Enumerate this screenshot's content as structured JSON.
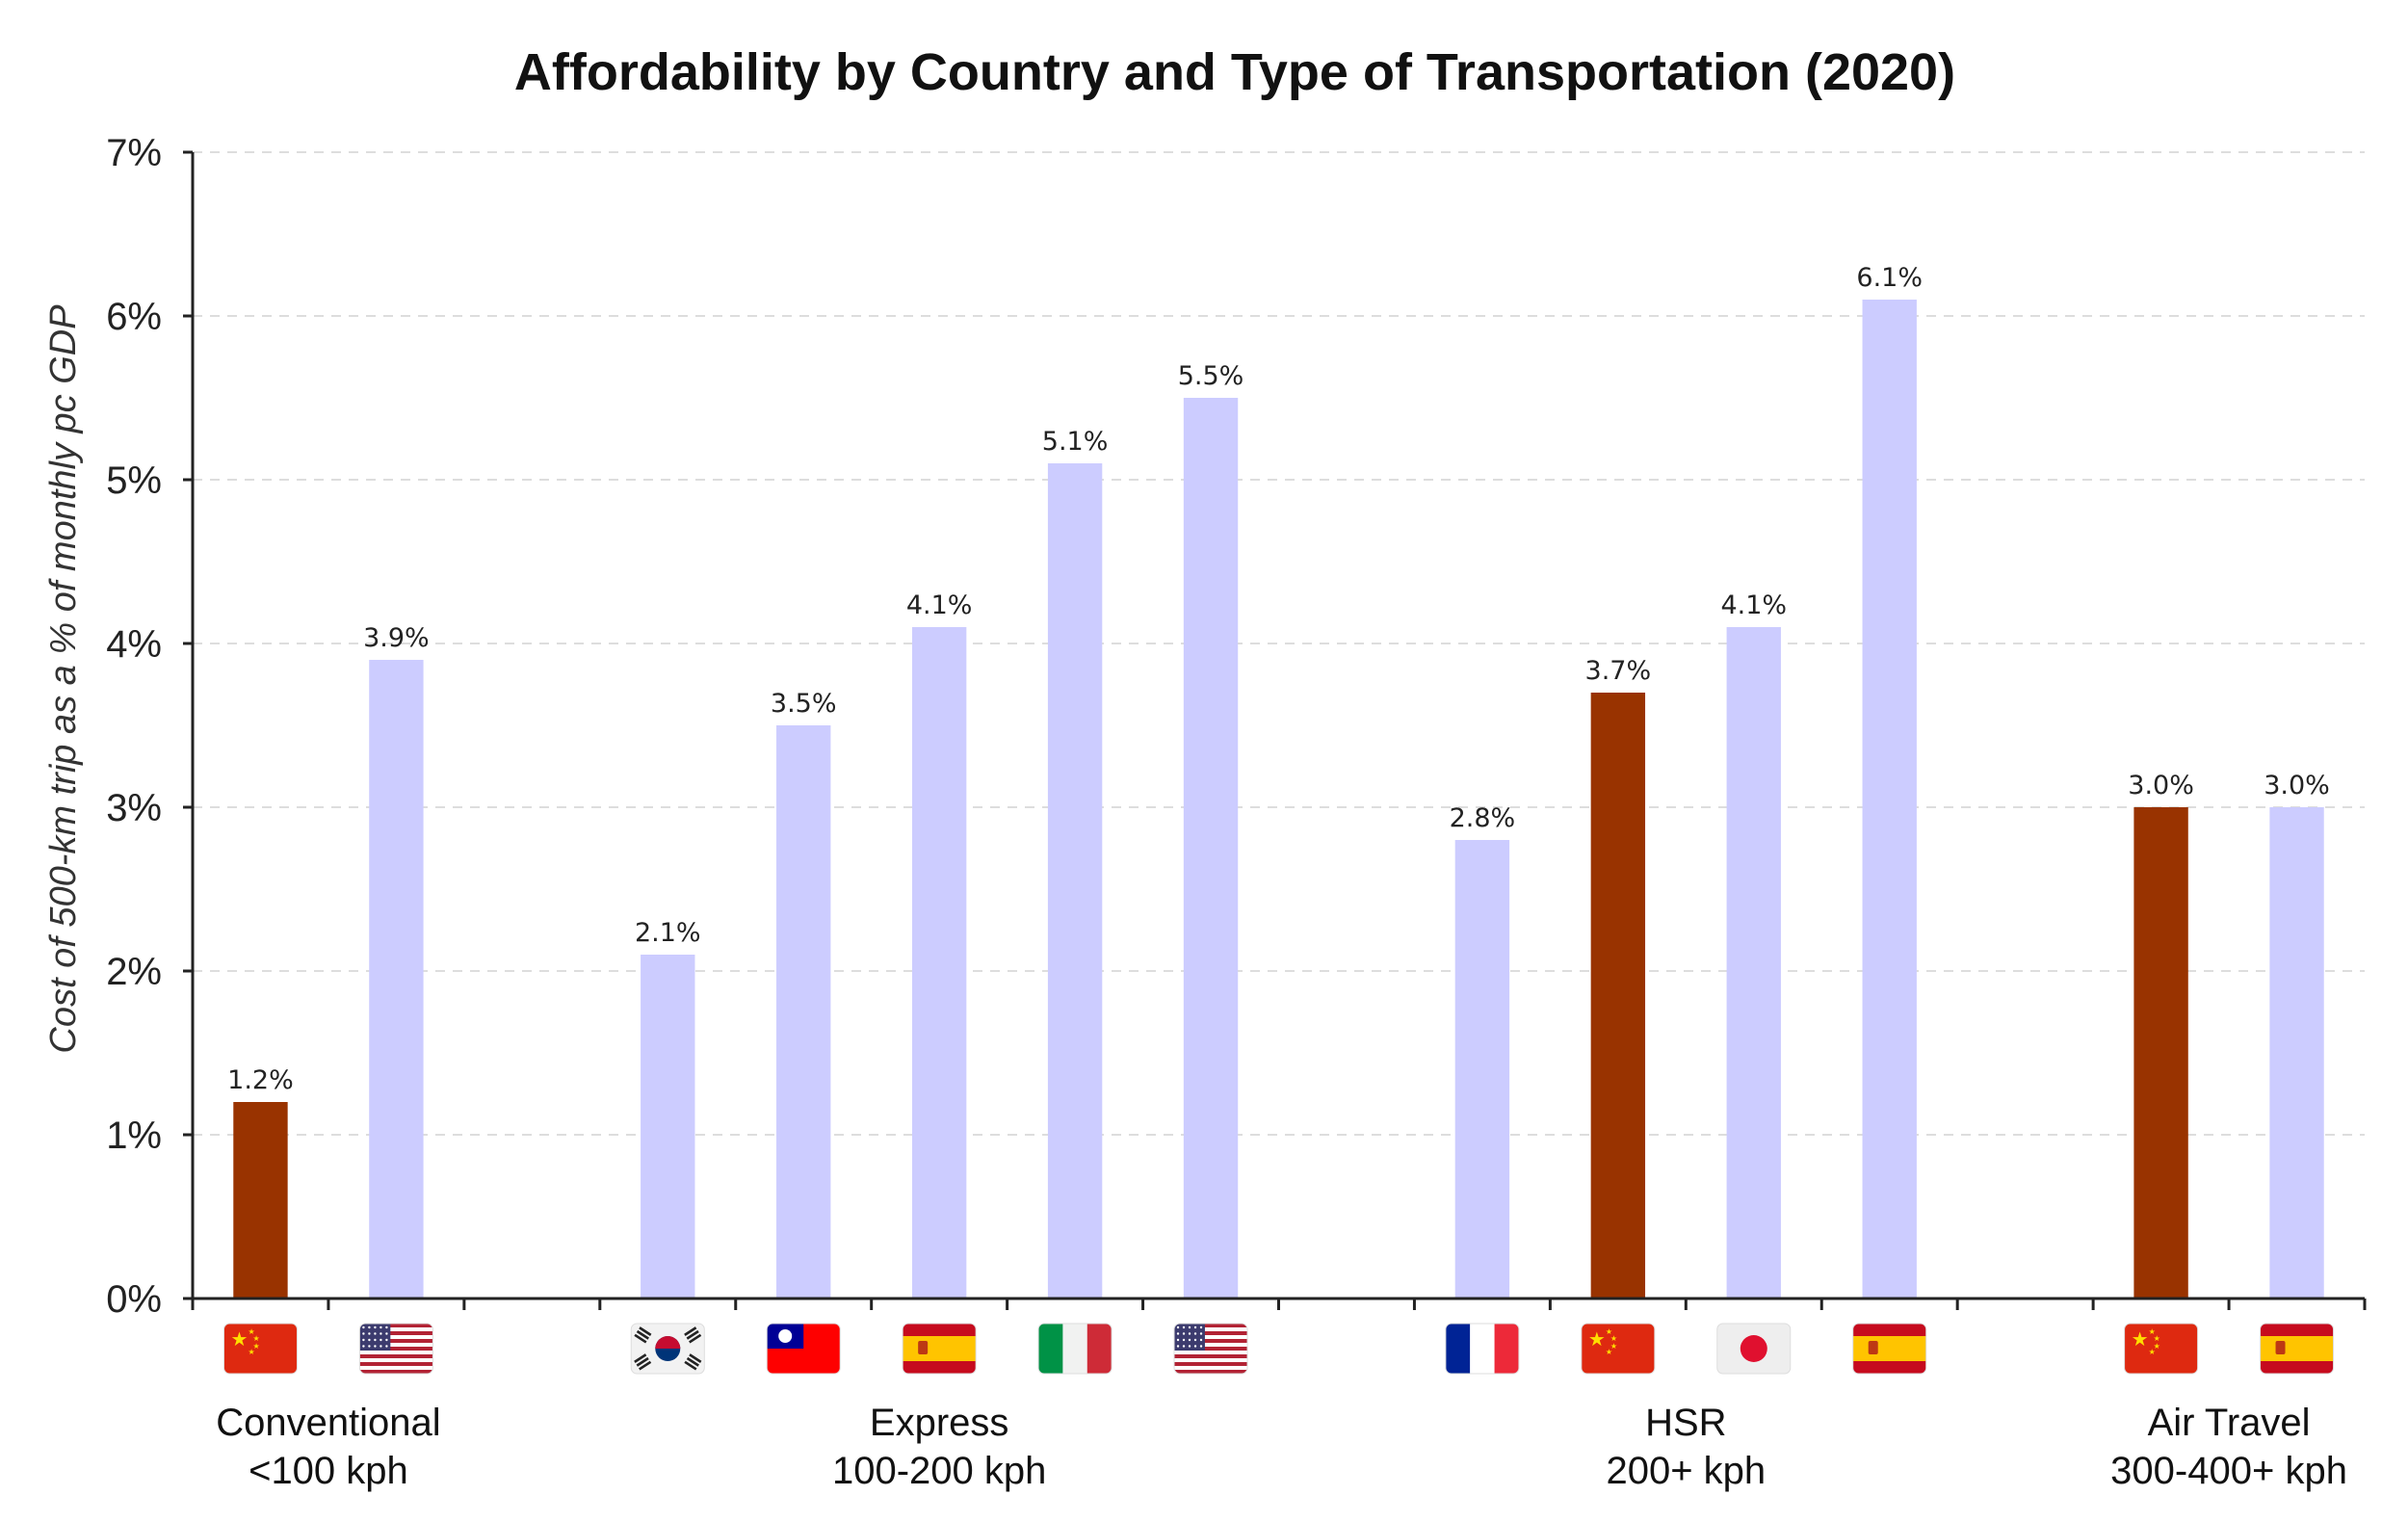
{
  "chart_data": {
    "type": "bar",
    "title": "Affordability by Country and Type of Transportation (2020)",
    "ylabel": "Cost of 500-km trip as a % of monthly pc GDP",
    "ylim": [
      0,
      7
    ],
    "yticks": [
      "0%",
      "1%",
      "2%",
      "3%",
      "4%",
      "5%",
      "6%",
      "7%"
    ],
    "grid": true,
    "colors": {
      "china": "#993300",
      "other": "#ccccff"
    },
    "groups": [
      {
        "label_line1": "Conventional",
        "label_line2": "<100 kph",
        "bars": [
          {
            "country": "China",
            "flag_icon": "flag-china-icon",
            "value": 1.2,
            "label": "1.2%"
          },
          {
            "country": "United States",
            "flag_icon": "flag-usa-icon",
            "value": 3.9,
            "label": "3.9%"
          }
        ]
      },
      {
        "label_line1": "Express",
        "label_line2": "100-200 kph",
        "bars": [
          {
            "country": "South Korea",
            "flag_icon": "flag-south-korea-icon",
            "value": 2.1,
            "label": "2.1%"
          },
          {
            "country": "Taiwan",
            "flag_icon": "flag-taiwan-icon",
            "value": 3.5,
            "label": "3.5%"
          },
          {
            "country": "Spain",
            "flag_icon": "flag-spain-icon",
            "value": 4.1,
            "label": "4.1%"
          },
          {
            "country": "Italy",
            "flag_icon": "flag-italy-icon",
            "value": 5.1,
            "label": "5.1%"
          },
          {
            "country": "United States",
            "flag_icon": "flag-usa-icon",
            "value": 5.5,
            "label": "5.5%"
          }
        ]
      },
      {
        "label_line1": "HSR",
        "label_line2": "200+ kph",
        "bars": [
          {
            "country": "France",
            "flag_icon": "flag-france-icon",
            "value": 2.8,
            "label": "2.8%"
          },
          {
            "country": "China",
            "flag_icon": "flag-china-icon",
            "value": 3.7,
            "label": "3.7%"
          },
          {
            "country": "Japan",
            "flag_icon": "flag-japan-icon",
            "value": 4.1,
            "label": "4.1%"
          },
          {
            "country": "Spain",
            "flag_icon": "flag-spain-icon",
            "value": 6.1,
            "label": "6.1%"
          }
        ]
      },
      {
        "label_line1": "Air Travel",
        "label_line2": "300-400+ kph",
        "bars": [
          {
            "country": "China",
            "flag_icon": "flag-china-icon",
            "value": 3.0,
            "label": "3.0%"
          },
          {
            "country": "Spain",
            "flag_icon": "flag-spain-icon",
            "value": 3.0,
            "label": "3.0%"
          }
        ]
      }
    ]
  }
}
